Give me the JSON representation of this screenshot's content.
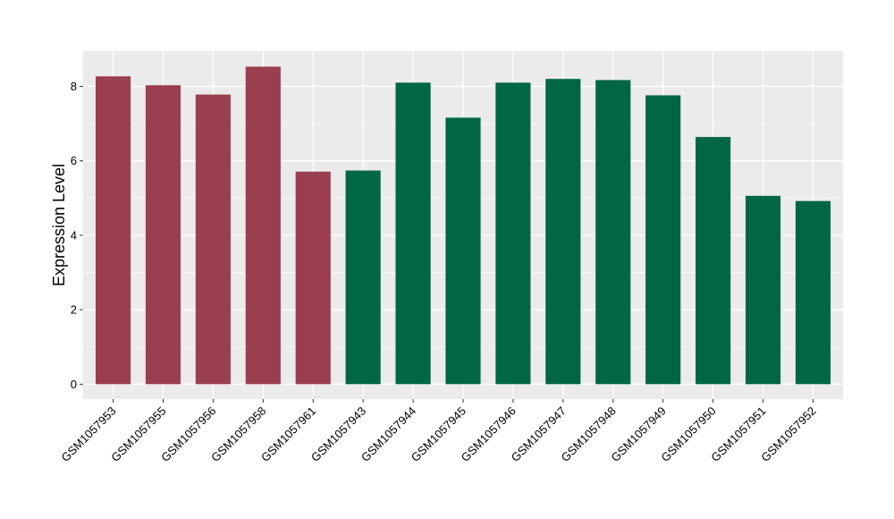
{
  "chart_data": {
    "type": "bar",
    "title": "",
    "xlabel": "",
    "ylabel": "Expression Level",
    "ylim": [
      -0.4,
      8.95
    ],
    "yticks": [
      0,
      2,
      4,
      6,
      8
    ],
    "grid": true,
    "legend": "none",
    "categories": [
      "GSM1057953",
      "GSM1057955",
      "GSM1057956",
      "GSM1057958",
      "GSM1057961",
      "GSM1057943",
      "GSM1057944",
      "GSM1057945",
      "GSM1057946",
      "GSM1057947",
      "GSM1057948",
      "GSM1057949",
      "GSM1057950",
      "GSM1057951",
      "GSM1057952"
    ],
    "values": [
      8.27,
      8.03,
      7.78,
      8.53,
      5.71,
      5.74,
      8.1,
      7.16,
      8.1,
      8.2,
      8.17,
      7.76,
      6.64,
      5.06,
      4.92
    ],
    "groups": [
      "a",
      "a",
      "a",
      "a",
      "a",
      "b",
      "b",
      "b",
      "b",
      "b",
      "b",
      "b",
      "b",
      "b",
      "b"
    ],
    "group_colors": {
      "a": "#9a3f4f",
      "b": "#006644"
    },
    "panel_color": "#ebebeb",
    "grid_color": "#ffffff"
  }
}
